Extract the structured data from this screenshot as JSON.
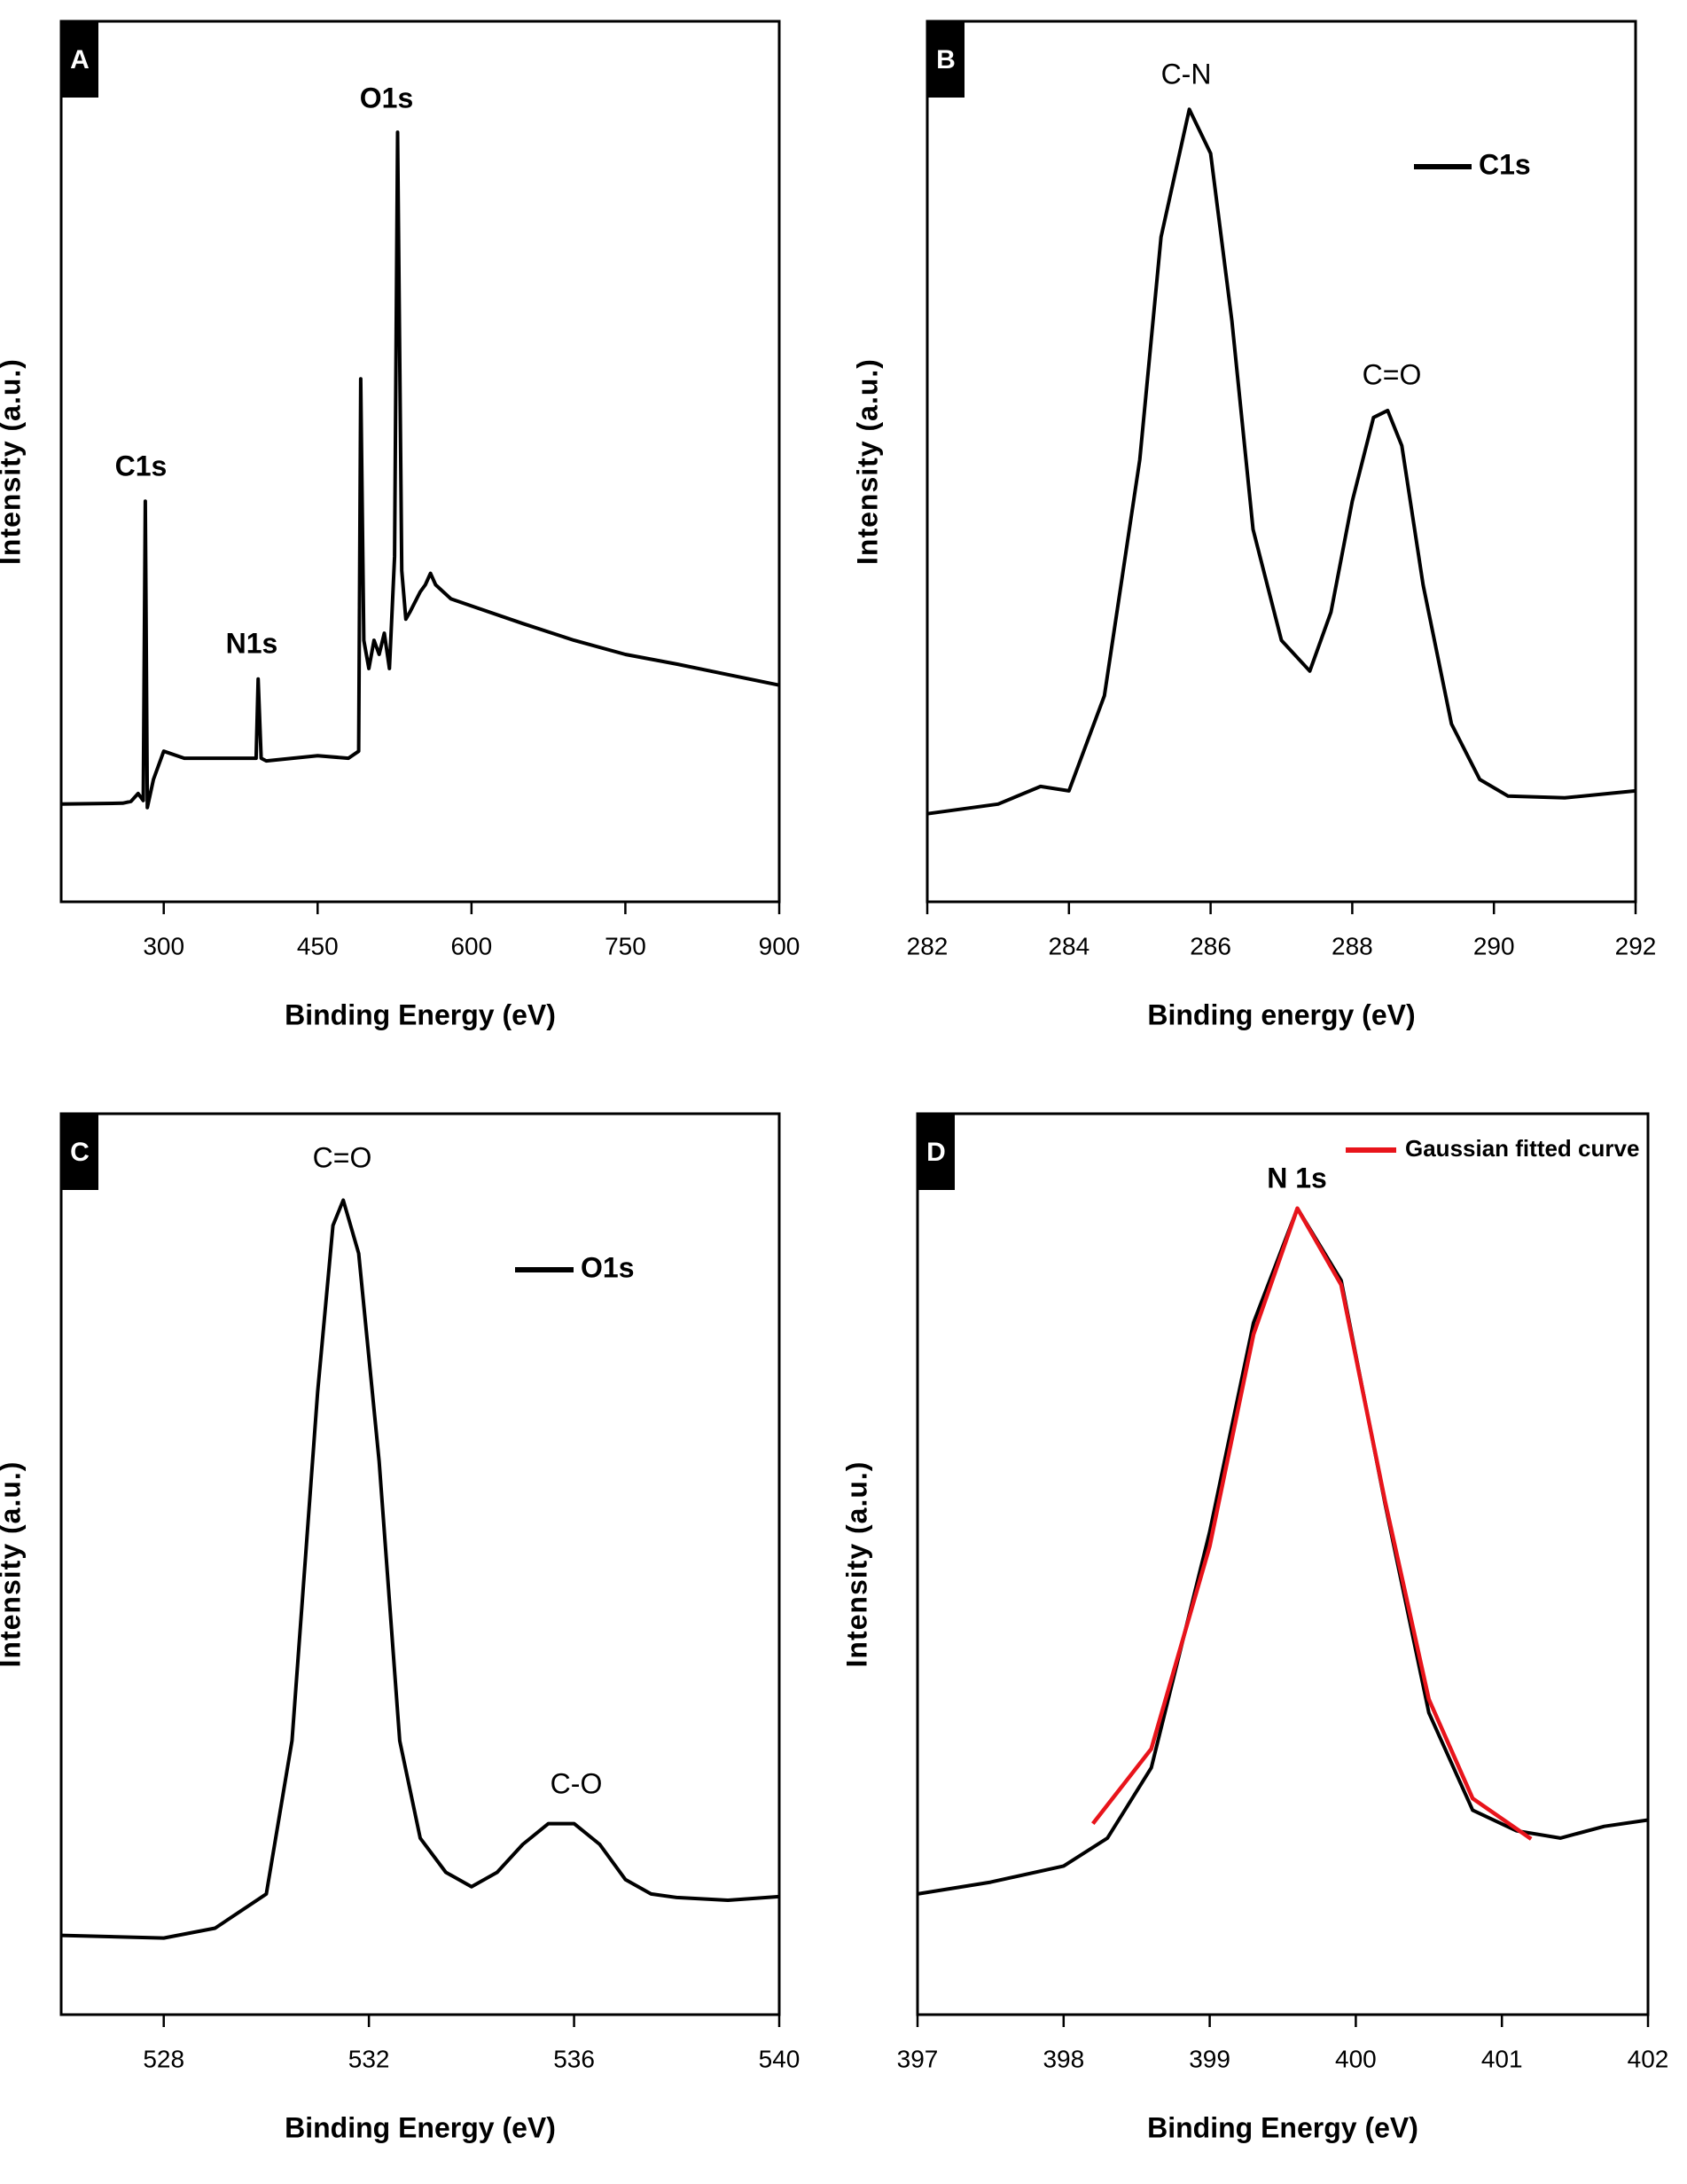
{
  "chart_data": [
    {
      "type": "line",
      "panel_label": "A",
      "x_label": "Binding Energy (eV)",
      "y_label": "Intensity (a.u.)",
      "xlim": [
        200,
        900
      ],
      "ylim": [
        0,
        100
      ],
      "xticks": [
        300,
        450,
        600,
        750,
        900
      ],
      "series": [
        {
          "color": "#000000",
          "x": [
            200,
            260,
            268,
            275,
            280,
            282,
            284,
            290,
            300,
            320,
            350,
            370,
            390,
            392,
            395,
            400,
            450,
            480,
            490,
            492,
            495,
            500,
            505,
            510,
            515,
            520,
            525,
            528,
            532,
            536,
            540,
            550,
            555,
            560,
            565,
            580,
            600,
            650,
            700,
            750,
            800,
            850,
            900
          ],
          "values": [
            11.1,
            11.2,
            11.4,
            12.3,
            11.5,
            45.5,
            10.7,
            13.9,
            17.1,
            16.3,
            16.3,
            16.3,
            16.3,
            25.3,
            16.3,
            16.0,
            16.6,
            16.3,
            17.1,
            59.4,
            29.7,
            26.5,
            29.7,
            28.1,
            30.5,
            26.5,
            39.2,
            87.4,
            37.6,
            32.1,
            32.9,
            35.2,
            36.0,
            37.3,
            36.0,
            34.4,
            33.6,
            31.6,
            29.7,
            28.1,
            27.0,
            25.8,
            24.6
          ]
        }
      ],
      "annotations": [
        "C1s",
        "N1s",
        "O1s"
      ]
    },
    {
      "type": "line",
      "panel_label": "B",
      "x_label": "Binding energy (eV)",
      "y_label": "Intensity (a.u.)",
      "xlim": [
        282,
        292
      ],
      "ylim": [
        0,
        100
      ],
      "xticks": [
        282,
        284,
        286,
        288,
        290,
        292
      ],
      "legend": "upper right",
      "series": [
        {
          "name": "C1s",
          "color": "#000000",
          "x": [
            282,
            283,
            283.6,
            284,
            284.5,
            285,
            285.3,
            285.7,
            286,
            286.3,
            286.6,
            287,
            287.4,
            287.7,
            288,
            288.3,
            288.5,
            288.7,
            289,
            289.4,
            289.8,
            290.2,
            291,
            292
          ],
          "values": [
            10.0,
            11.1,
            13.1,
            12.6,
            23.4,
            50.2,
            75.5,
            90.0,
            85.0,
            66.0,
            42.3,
            29.7,
            26.2,
            32.9,
            45.5,
            55.0,
            55.8,
            51.8,
            36.0,
            20.2,
            13.9,
            12.0,
            11.8,
            12.6
          ]
        }
      ],
      "annotations": [
        "C-N",
        "C=O"
      ]
    },
    {
      "type": "line",
      "panel_label": "C",
      "x_label": "Binding Energy (eV)",
      "y_label": "Intensity (a.u.)",
      "xlim": [
        526,
        540
      ],
      "ylim": [
        0,
        100
      ],
      "xticks": [
        528,
        532,
        536,
        540
      ],
      "legend": "upper right",
      "series": [
        {
          "name": "O1s",
          "color": "#000000",
          "x": [
            526,
            528,
            529,
            530,
            530.5,
            531,
            531.3,
            531.5,
            531.8,
            532.2,
            532.6,
            533,
            533.5,
            534,
            534.5,
            535,
            535.5,
            536,
            536.5,
            537,
            537.5,
            538,
            539,
            540
          ],
          "values": [
            8.8,
            8.5,
            9.6,
            13.4,
            30.4,
            69.1,
            87.6,
            90.4,
            84.5,
            61.4,
            30.4,
            19.6,
            15.8,
            14.2,
            15.8,
            18.9,
            21.2,
            21.2,
            18.9,
            15.0,
            13.4,
            13.0,
            12.7,
            13.1
          ]
        }
      ],
      "annotations": [
        "C=O",
        "C-O"
      ]
    },
    {
      "type": "line",
      "panel_label": "D",
      "x_label": "Binding Energy (eV)",
      "y_label": "Intensity (a.u.)",
      "xlim": [
        397,
        402
      ],
      "ylim": [
        0,
        100
      ],
      "xticks": [
        397,
        398,
        399,
        400,
        401,
        402
      ],
      "legend": "upper right",
      "series": [
        {
          "color": "#000000",
          "x": [
            397,
            397.5,
            398,
            398.3,
            398.6,
            399,
            399.3,
            399.6,
            399.9,
            400.2,
            400.5,
            400.8,
            401.1,
            401.4,
            401.7,
            402
          ],
          "values": [
            13.4,
            14.7,
            16.5,
            19.6,
            27.4,
            53.6,
            76.8,
            89.5,
            81.5,
            56.7,
            33.5,
            22.7,
            20.4,
            19.6,
            20.9,
            21.6
          ]
        },
        {
          "name": "Gaussian fitted curve",
          "color": "#e8141b",
          "x": [
            398.2,
            398.6,
            399,
            399.3,
            399.6,
            399.9,
            400.2,
            400.5,
            400.8,
            401.2
          ],
          "values": [
            21.2,
            29.5,
            52.0,
            75.5,
            89.5,
            81.0,
            57.0,
            35.0,
            24.0,
            19.5
          ]
        }
      ],
      "annotations": [
        "N 1s"
      ]
    }
  ]
}
